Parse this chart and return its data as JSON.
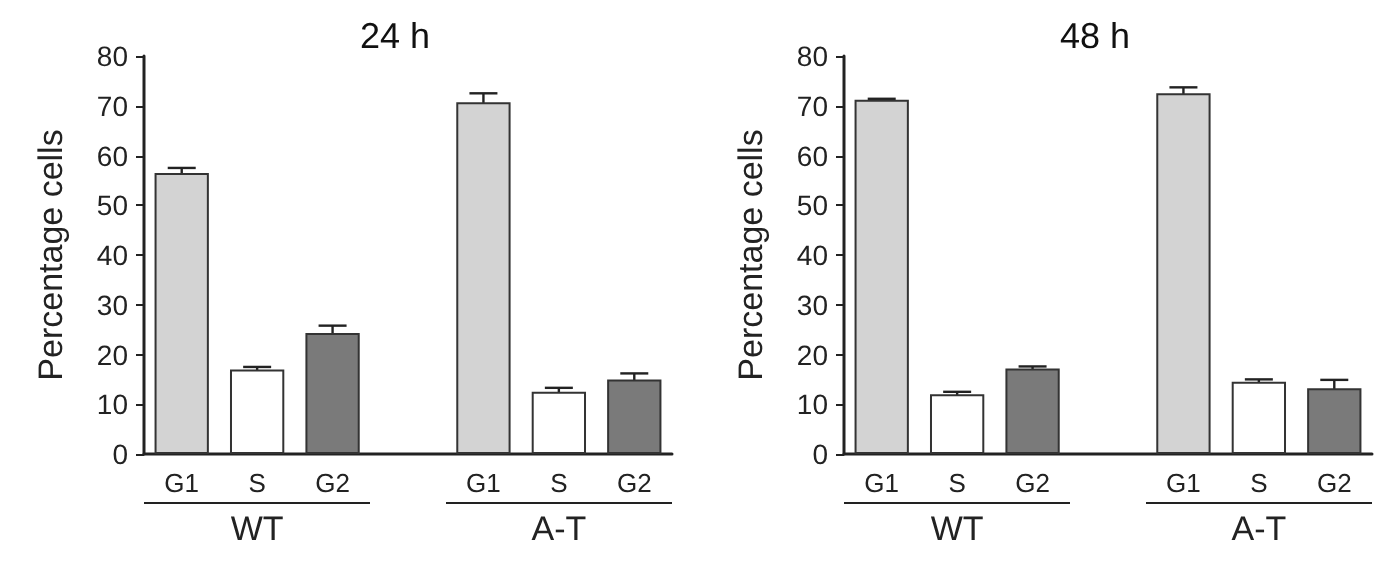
{
  "chart_data": [
    {
      "type": "bar",
      "title": "24 h",
      "ylabel": "Percentage cells",
      "categories": [
        "G1",
        "S",
        "G2",
        null,
        "G1",
        "S",
        "G2"
      ],
      "values": [
        56.5,
        17,
        24.3,
        null,
        70.7,
        12.5,
        15
      ],
      "errors": [
        1,
        0.5,
        1.5,
        null,
        1.8,
        0.8,
        1.2
      ],
      "colors": [
        "#d3d3d3",
        "#ffffff",
        "#7a7a7a",
        "#ffffff",
        "#d3d3d3",
        "#ffffff",
        "#7a7a7a"
      ],
      "ylim": [
        0,
        80
      ],
      "yticks": [
        0,
        10,
        20,
        30,
        40,
        50,
        60,
        70,
        80
      ],
      "annotations": [
        "WT",
        "A-T"
      ]
    },
    {
      "type": "bar",
      "title": "48 h",
      "ylabel": "Percentage cells",
      "categories": [
        "G1",
        "S",
        "G2",
        null,
        "G1",
        "S",
        "G2"
      ],
      "values": [
        71.2,
        12,
        17.2,
        null,
        72.5,
        14.5,
        13.2
      ],
      "errors": [
        0.2,
        0.5,
        0.4,
        null,
        1.2,
        0.5,
        1.7
      ],
      "colors": [
        "#d3d3d3",
        "#ffffff",
        "#7a7a7a",
        "#ffffff",
        "#d3d3d3",
        "#ffffff",
        "#7a7a7a"
      ],
      "ylim": [
        0,
        80
      ],
      "yticks": [
        0,
        10,
        20,
        30,
        40,
        50,
        60,
        70,
        80
      ],
      "annotations": [
        "WT",
        "A-T"
      ]
    }
  ]
}
